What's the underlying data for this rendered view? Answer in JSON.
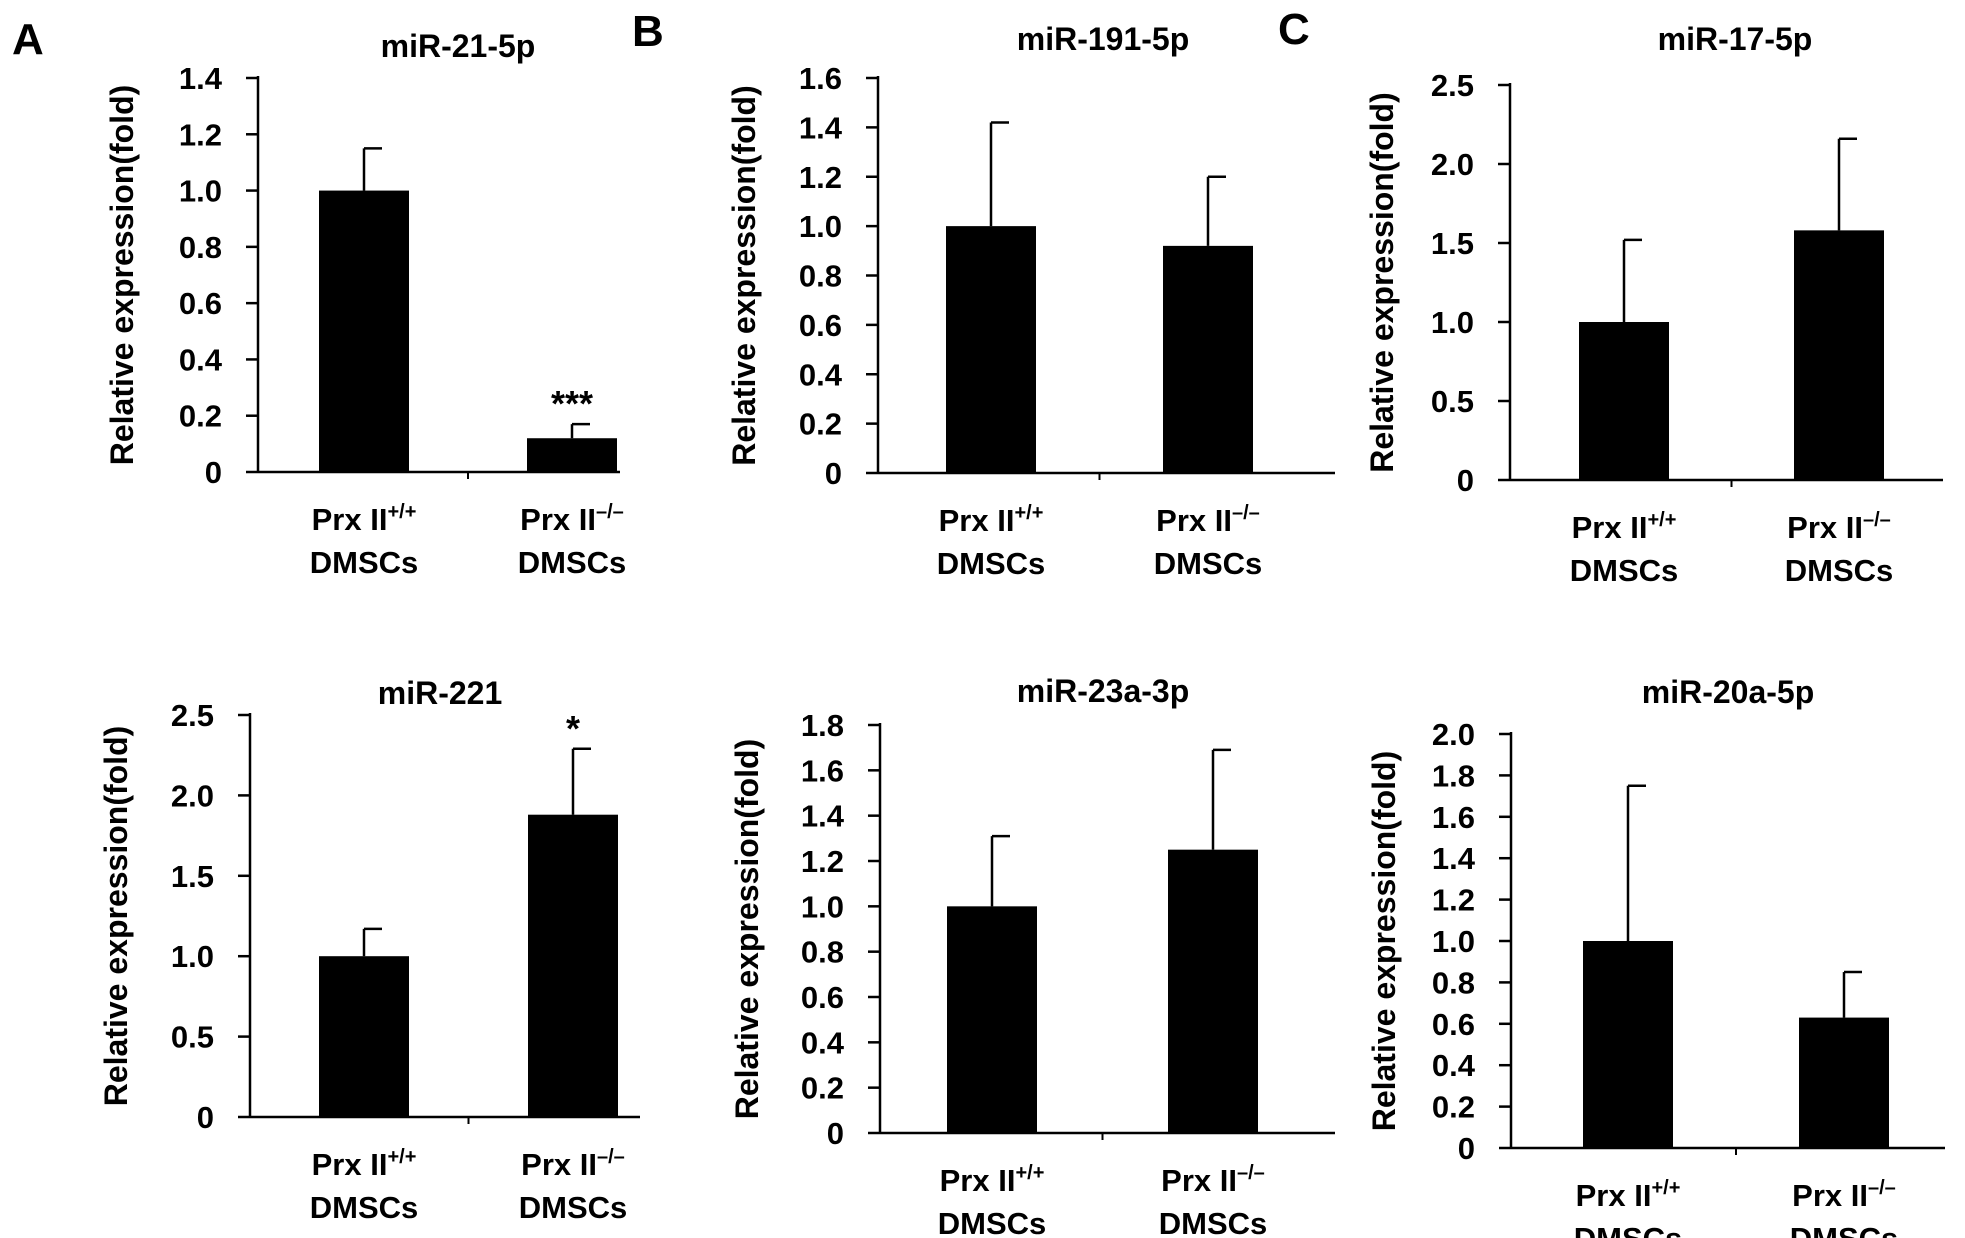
{
  "panel_labels": [
    "A",
    "B",
    "C"
  ],
  "chart_data": [
    {
      "type": "bar",
      "panel": "A",
      "title": "miR-21-5p",
      "ylabel": "Relative expression(fold)",
      "xlabel": "",
      "categories": [
        {
          "line1": "Prx II",
          "sup": "+/+",
          "line2": "DMSCs"
        },
        {
          "line1": "Prx II",
          "sup": "–/–",
          "line2": "DMSCs"
        }
      ],
      "values": [
        1.0,
        0.12
      ],
      "errors": [
        0.15,
        0.05
      ],
      "annotations": [
        "",
        "***"
      ],
      "ylim": [
        0,
        1.4
      ],
      "yticks": [
        "0",
        "0.2",
        "0.4",
        "0.6",
        "0.8",
        "1.0",
        "1.2",
        "1.4"
      ],
      "grid": false
    },
    {
      "type": "bar",
      "panel": "B",
      "title": "miR-191-5p",
      "ylabel": "Relative expression(fold)",
      "xlabel": "",
      "categories": [
        {
          "line1": "Prx II",
          "sup": "+/+",
          "line2": "DMSCs"
        },
        {
          "line1": "Prx II",
          "sup": "–/–",
          "line2": "DMSCs"
        }
      ],
      "values": [
        1.0,
        0.92
      ],
      "errors": [
        0.42,
        0.28
      ],
      "annotations": [
        "",
        ""
      ],
      "ylim": [
        0,
        1.6
      ],
      "yticks": [
        "0",
        "0.2",
        "0.4",
        "0.6",
        "0.8",
        "1.0",
        "1.2",
        "1.4",
        "1.6"
      ],
      "grid": false
    },
    {
      "type": "bar",
      "panel": "C",
      "title": "miR-17-5p",
      "ylabel": "Relative expression(fold)",
      "xlabel": "",
      "categories": [
        {
          "line1": "Prx II",
          "sup": "+/+",
          "line2": "DMSCs"
        },
        {
          "line1": "Prx II",
          "sup": "–/–",
          "line2": "DMSCs"
        }
      ],
      "values": [
        1.0,
        1.58
      ],
      "errors": [
        0.52,
        0.58
      ],
      "annotations": [
        "",
        ""
      ],
      "ylim": [
        0,
        2.5
      ],
      "yticks": [
        "0",
        "0.5",
        "1.0",
        "1.5",
        "2.0",
        "2.5"
      ],
      "grid": false
    },
    {
      "type": "bar",
      "panel": "A",
      "title": "miR-221",
      "ylabel": "Relative expression(fold)",
      "xlabel": "",
      "categories": [
        {
          "line1": "Prx II",
          "sup": "+/+",
          "line2": "DMSCs"
        },
        {
          "line1": "Prx II",
          "sup": "–/–",
          "line2": "DMSCs"
        }
      ],
      "values": [
        1.0,
        1.88
      ],
      "errors": [
        0.17,
        0.41
      ],
      "annotations": [
        "",
        "*"
      ],
      "ylim": [
        0,
        2.5
      ],
      "yticks": [
        "0",
        "0.5",
        "1.0",
        "1.5",
        "2.0",
        "2.5"
      ],
      "grid": false
    },
    {
      "type": "bar",
      "panel": "B",
      "title": "miR-23a-3p",
      "ylabel": "Relative expression(fold)",
      "xlabel": "",
      "categories": [
        {
          "line1": "Prx II",
          "sup": "+/+",
          "line2": "DMSCs"
        },
        {
          "line1": "Prx II",
          "sup": "–/–",
          "line2": "DMSCs"
        }
      ],
      "values": [
        1.0,
        1.25
      ],
      "errors": [
        0.31,
        0.44
      ],
      "annotations": [
        "",
        ""
      ],
      "ylim": [
        0,
        1.8
      ],
      "yticks": [
        "0",
        "0.2",
        "0.4",
        "0.6",
        "0.8",
        "1.0",
        "1.2",
        "1.4",
        "1.6",
        "1.8"
      ],
      "grid": false
    },
    {
      "type": "bar",
      "panel": "C",
      "title": "miR-20a-5p",
      "ylabel": "Relative expression(fold)",
      "xlabel": "",
      "categories": [
        {
          "line1": "Prx II",
          "sup": "+/+",
          "line2": "DMSCs"
        },
        {
          "line1": "Prx II",
          "sup": "–/–",
          "line2": "DMSCs"
        }
      ],
      "values": [
        1.0,
        0.63
      ],
      "errors": [
        0.75,
        0.22
      ],
      "annotations": [
        "",
        ""
      ],
      "ylim": [
        0,
        2.0
      ],
      "yticks": [
        "0",
        "0.2",
        "0.4",
        "0.6",
        "0.8",
        "1.0",
        "1.2",
        "1.4",
        "1.6",
        "1.8",
        "2.0"
      ],
      "grid": false
    }
  ]
}
